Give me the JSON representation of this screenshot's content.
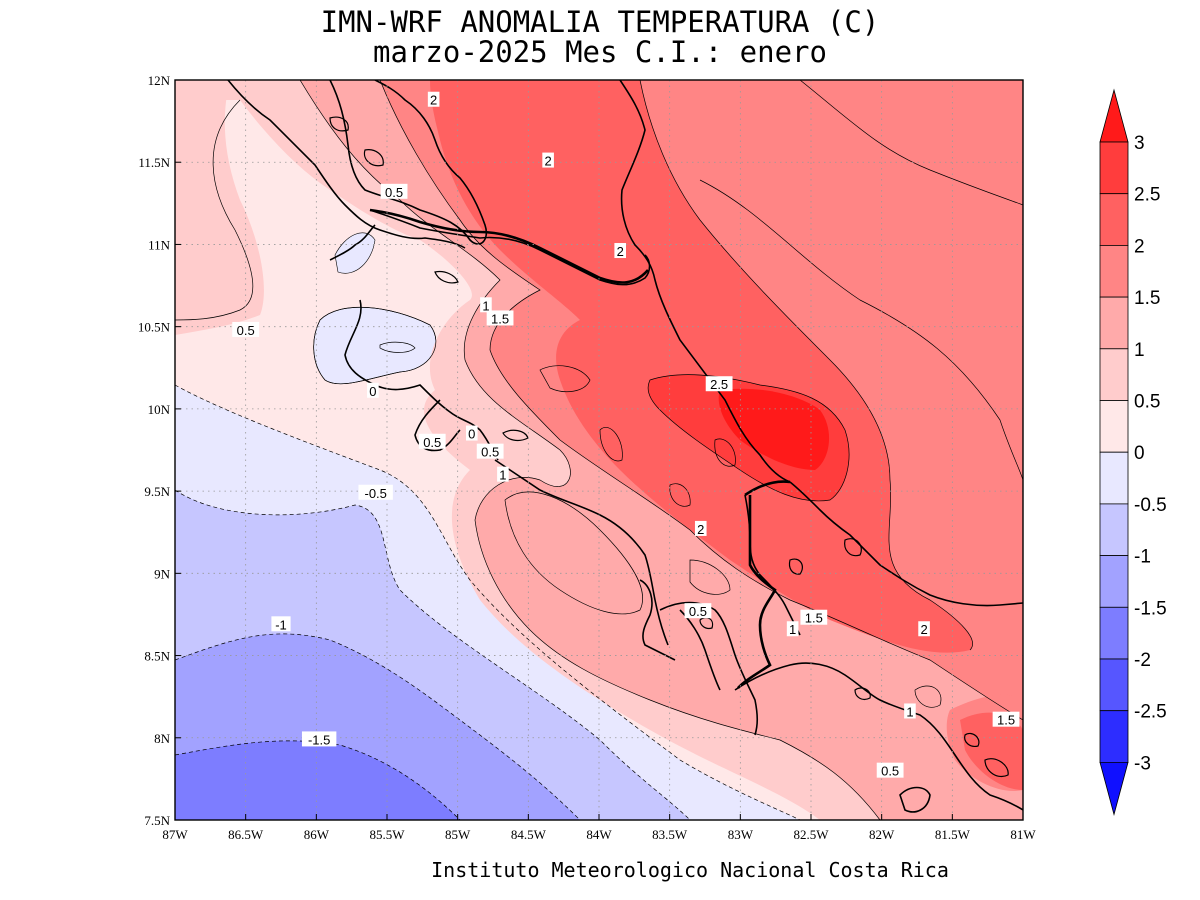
{
  "header": {
    "title": "IMN-WRF  ANOMALIA TEMPERATURA (C)",
    "subtitle": "marzo-2025 Mes C.I.: enero"
  },
  "footer": "Instituto Meteorologico Nacional Costa Rica",
  "axes": {
    "x_ticks": [
      "87W",
      "86.5W",
      "86W",
      "85.5W",
      "85W",
      "84.5W",
      "84W",
      "83.5W",
      "83W",
      "82.5W",
      "82W",
      "81.5W",
      "81W"
    ],
    "y_ticks": [
      "12N",
      "11.5N",
      "11N",
      "10.5N",
      "10N",
      "9.5N",
      "9N",
      "8.5N",
      "8N",
      "7.5N"
    ],
    "lon_range": [
      -87,
      -81
    ],
    "lat_range": [
      7.5,
      12
    ],
    "grid": "dotted"
  },
  "colorbar": {
    "ticks": [
      "3",
      "2.5",
      "2",
      "1.5",
      "1",
      "0.5",
      "0",
      "-0.5",
      "-1",
      "-1.5",
      "-2",
      "-2.5",
      "-3"
    ],
    "colors": [
      "#ff1a1a",
      "#ff3d3d",
      "#ff6161",
      "#ff8585",
      "#ffaaaa",
      "#ffcccc",
      "#ffe8e8",
      "#e8e8ff",
      "#c6c6ff",
      "#a2a2ff",
      "#7d7dff",
      "#5656ff",
      "#2d2dff",
      "#1010ff"
    ]
  },
  "contour_labels": [
    {
      "text": "2",
      "lon": -85.17,
      "lat": 11.88
    },
    {
      "text": "2",
      "lon": -84.36,
      "lat": 11.51
    },
    {
      "text": "0.5",
      "lon": -85.45,
      "lat": 11.32
    },
    {
      "text": "2",
      "lon": -83.85,
      "lat": 10.96
    },
    {
      "text": "1",
      "lon": -84.8,
      "lat": 10.63
    },
    {
      "text": "1.5",
      "lon": -84.7,
      "lat": 10.55
    },
    {
      "text": "0.5",
      "lon": -86.5,
      "lat": 10.48
    },
    {
      "text": "2.5",
      "lon": -83.15,
      "lat": 10.15
    },
    {
      "text": "0",
      "lon": -85.6,
      "lat": 10.11
    },
    {
      "text": "0.5",
      "lon": -85.18,
      "lat": 9.8
    },
    {
      "text": "0",
      "lon": -84.9,
      "lat": 9.85
    },
    {
      "text": "0.5",
      "lon": -84.77,
      "lat": 9.74
    },
    {
      "text": "1",
      "lon": -84.68,
      "lat": 9.6
    },
    {
      "text": "-0.5",
      "lon": -85.58,
      "lat": 9.49
    },
    {
      "text": "2",
      "lon": -83.28,
      "lat": 9.27
    },
    {
      "text": "0.5",
      "lon": -83.3,
      "lat": 8.77
    },
    {
      "text": "1.5",
      "lon": -82.48,
      "lat": 8.73
    },
    {
      "text": "1",
      "lon": -82.63,
      "lat": 8.66
    },
    {
      "text": "2",
      "lon": -81.7,
      "lat": 8.66
    },
    {
      "text": "-1",
      "lon": -86.25,
      "lat": 8.69
    },
    {
      "text": "1",
      "lon": -81.8,
      "lat": 8.16
    },
    {
      "text": "1.5",
      "lon": -81.12,
      "lat": 8.11
    },
    {
      "text": "-1.5",
      "lon": -85.98,
      "lat": 7.99
    },
    {
      "text": "0.5",
      "lon": -81.94,
      "lat": 7.8
    }
  ]
}
